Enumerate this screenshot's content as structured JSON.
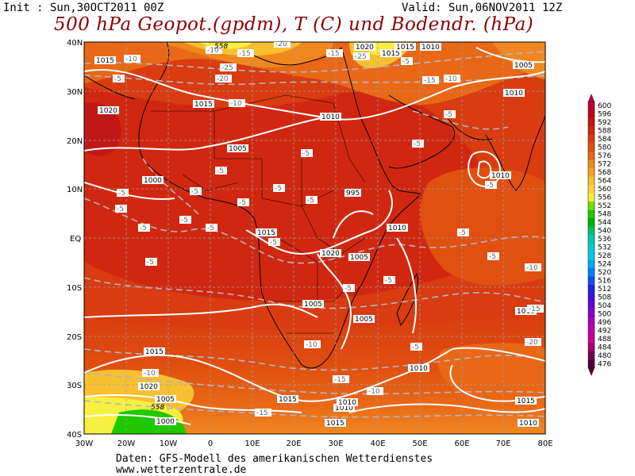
{
  "header": {
    "init": "Init : Sun,30OCT2011 00Z",
    "valid": "Valid: Sun,06NOV2011 12Z",
    "title": "500 hPa Geopot.(gpdm), T (C) und Bodendr. (hPa)"
  },
  "footer": {
    "line1": "Daten: GFS-Modell des amerikanischen Wetterdienstes",
    "line2": "www.wetterzentrale.de"
  },
  "map": {
    "lat_labels": [
      "40N",
      "30N",
      "20N",
      "10N",
      "EQ",
      "10S",
      "20S",
      "30S",
      "40S"
    ],
    "lon_labels": [
      "30W",
      "20W",
      "10W",
      "0",
      "10E",
      "20E",
      "30E",
      "40E",
      "50E",
      "60E",
      "70E",
      "80E"
    ],
    "pressure_labels": [
      "1020",
      "1015",
      "1010",
      "1005",
      "1000",
      "995",
      "1010",
      "1015",
      "1020",
      "1010",
      "1005",
      "1005",
      "1005",
      "1010",
      "1015",
      "1010",
      "1015",
      "1005",
      "1000",
      "1010",
      "1015",
      "1020",
      "1005",
      "1010",
      "1015",
      "1010",
      "1010",
      "1015",
      "1015",
      "1010",
      "1020",
      "1015"
    ],
    "temperature_labels": [
      "-10",
      "-15",
      "-20",
      "-25",
      "-5",
      "-10",
      "-15",
      "-20",
      "-25",
      "-5",
      "-10",
      "-15",
      "-10",
      "-5",
      "-5",
      "-5",
      "-5",
      "-5",
      "-5",
      "-5",
      "-5",
      "-5",
      "-5",
      "-5",
      "-5",
      "-5",
      "-5",
      "-10",
      "-15",
      "-20",
      "-5",
      "-10",
      "-15",
      "-10",
      "-5",
      "-5",
      "-5",
      "-5",
      "-5",
      "-5",
      "-10",
      "-15"
    ],
    "contour_labels_geopot": [
      "558",
      "558"
    ]
  },
  "legend": {
    "values": [
      "600",
      "596",
      "592",
      "588",
      "584",
      "580",
      "576",
      "572",
      "568",
      "564",
      "560",
      "556",
      "552",
      "548",
      "544",
      "540",
      "536",
      "532",
      "528",
      "524",
      "520",
      "516",
      "512",
      "508",
      "504",
      "500",
      "496",
      "492",
      "488",
      "484",
      "480",
      "476"
    ],
    "colors": [
      "#b8003a",
      "#c80020",
      "#c01818",
      "#d02810",
      "#d83c10",
      "#e05010",
      "#e86818",
      "#f08820",
      "#f8a028",
      "#f8c030",
      "#f8d838",
      "#f8f040",
      "#70e000",
      "#20c800",
      "#00b000",
      "#00c070",
      "#00c8a8",
      "#00d0c8",
      "#00c8e8",
      "#00a8f8",
      "#0080f8",
      "#1050f0",
      "#2020e0",
      "#4010d8",
      "#6808d0",
      "#8800c8",
      "#a800b8",
      "#c000a8",
      "#d00090",
      "#a00070",
      "#700050",
      "#500030"
    ],
    "field_colors": [
      "#c01818",
      "#d02810",
      "#d83c10",
      "#e05010",
      "#e86818",
      "#f08820",
      "#f8c030",
      "#f8f040",
      "#20c800"
    ]
  }
}
